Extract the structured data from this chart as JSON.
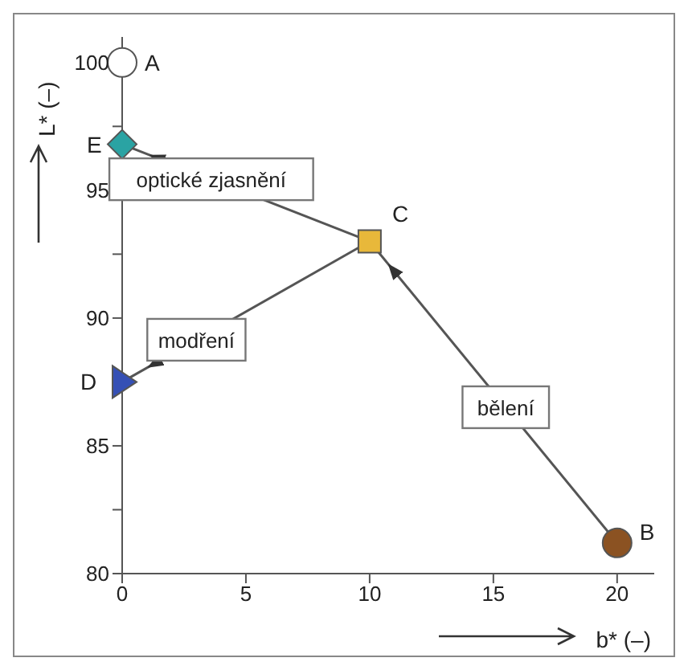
{
  "chart_data": {
    "type": "scatter",
    "xlabel": "b* (–)",
    "ylabel": "L* (–)",
    "xlim": [
      0,
      21.5
    ],
    "ylim": [
      80,
      101
    ],
    "xticks": [
      0,
      5,
      10,
      15,
      20
    ],
    "yticks": [
      80,
      {
        "value": 82.5,
        "label": null
      },
      85,
      {
        "value": 87.5,
        "label": null
      },
      90,
      {
        "value": 92.5,
        "label": null
      },
      95,
      {
        "value": 97.5,
        "label": null
      },
      100
    ],
    "grid": false,
    "legend": false,
    "series": [
      {
        "name": "A",
        "color": "#ffffff",
        "marker": "circle",
        "x": [
          0
        ],
        "values": [
          100
        ]
      },
      {
        "name": "E",
        "color": "#2aa3a3",
        "marker": "diamond",
        "x": [
          0
        ],
        "values": [
          96.8
        ]
      },
      {
        "name": "C",
        "color": "#e8b83a",
        "marker": "square",
        "x": [
          10
        ],
        "values": [
          93
        ]
      },
      {
        "name": "D",
        "color": "#3550b5",
        "marker": "triangle",
        "x": [
          0
        ],
        "values": [
          87.5
        ]
      },
      {
        "name": "B",
        "color": "#8b5222",
        "marker": "circle",
        "x": [
          20
        ],
        "values": [
          81.2
        ]
      },
      {
        "type": "line",
        "color": "#555555",
        "marker": "none",
        "x": [
          10,
          0
        ],
        "values": [
          93,
          96.8
        ]
      },
      {
        "type": "line",
        "color": "#555555",
        "marker": "none",
        "x": [
          10,
          0
        ],
        "values": [
          93,
          87.5
        ]
      },
      {
        "type": "line",
        "color": "#555555",
        "marker": "none",
        "x": [
          20,
          10
        ],
        "values": [
          81.2,
          93
        ]
      }
    ],
    "annotations": [
      "optické zjasnění",
      "modření",
      "bělení"
    ]
  }
}
